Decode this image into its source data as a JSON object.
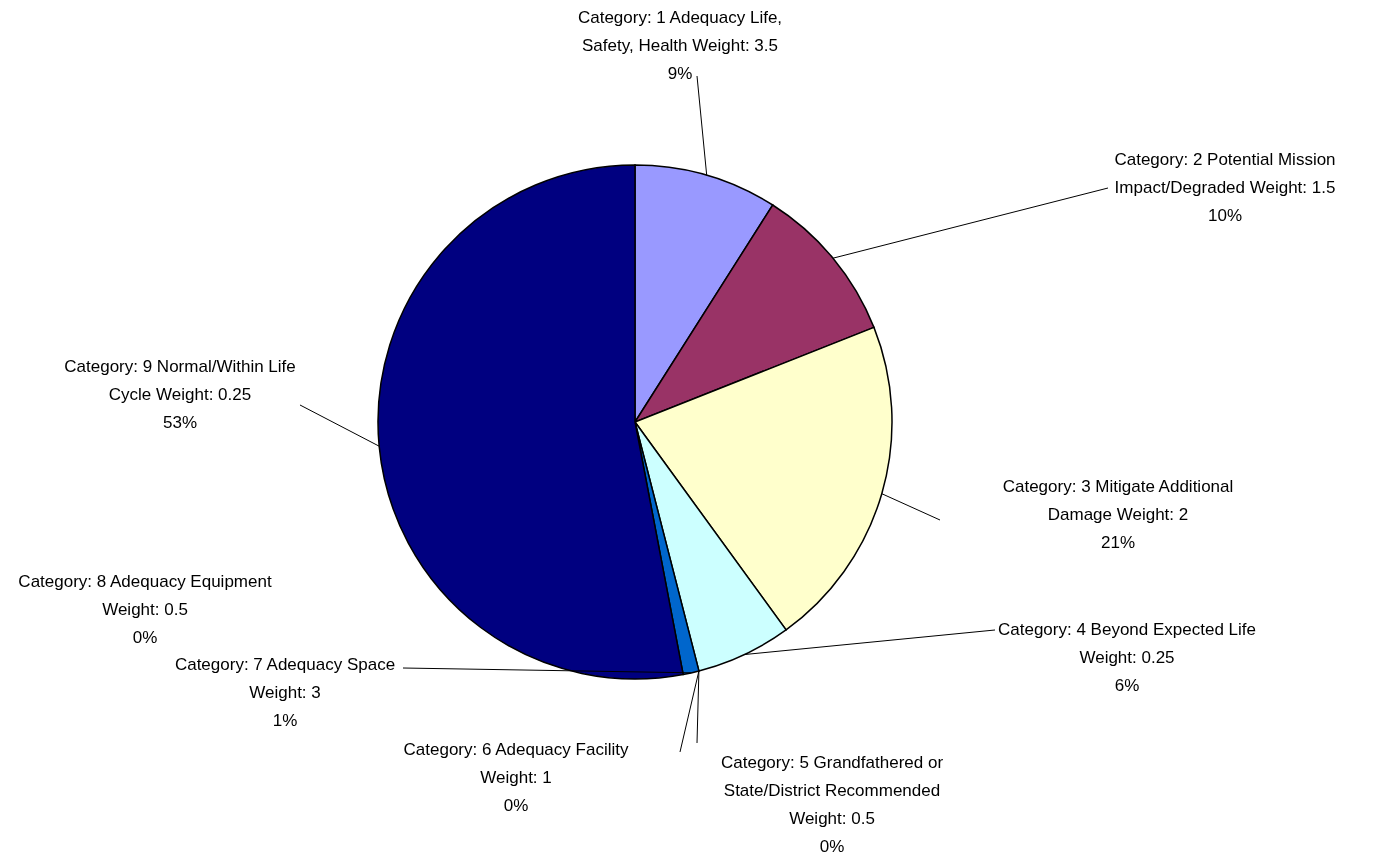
{
  "chart_data": {
    "type": "pie",
    "categories": [
      "Category: 1  Adequacy Life, Safety, Health  Weight: 3.5",
      "Category: 2  Potential Mission Impact/Degraded  Weight: 1.5",
      "Category: 3  Mitigate Additional Damage  Weight: 2",
      "Category: 4  Beyond Expected Life  Weight: 0.25",
      "Category: 5  Grandfathered or State/District Recommended  Weight: 0.5",
      "Category: 6  Adequacy Facility  Weight: 1",
      "Category: 7  Adequacy Space  Weight: 3",
      "Category: 8  Adequacy Equipment  Weight: 0.5",
      "Category: 9  Normal/Within Life Cycle  Weight: 0.25"
    ],
    "values": [
      9,
      10,
      21,
      6,
      0,
      0,
      1,
      0,
      53
    ],
    "value_labels": [
      "9%",
      "10%",
      "21%",
      "6%",
      "0%",
      "0%",
      "1%",
      "0%",
      "53%"
    ],
    "colors": [
      "#9999ff",
      "#993366",
      "#ffffcc",
      "#ccffff",
      "#660066",
      "#ff8080",
      "#0066cc",
      "#ccccff",
      "#000080"
    ]
  }
}
